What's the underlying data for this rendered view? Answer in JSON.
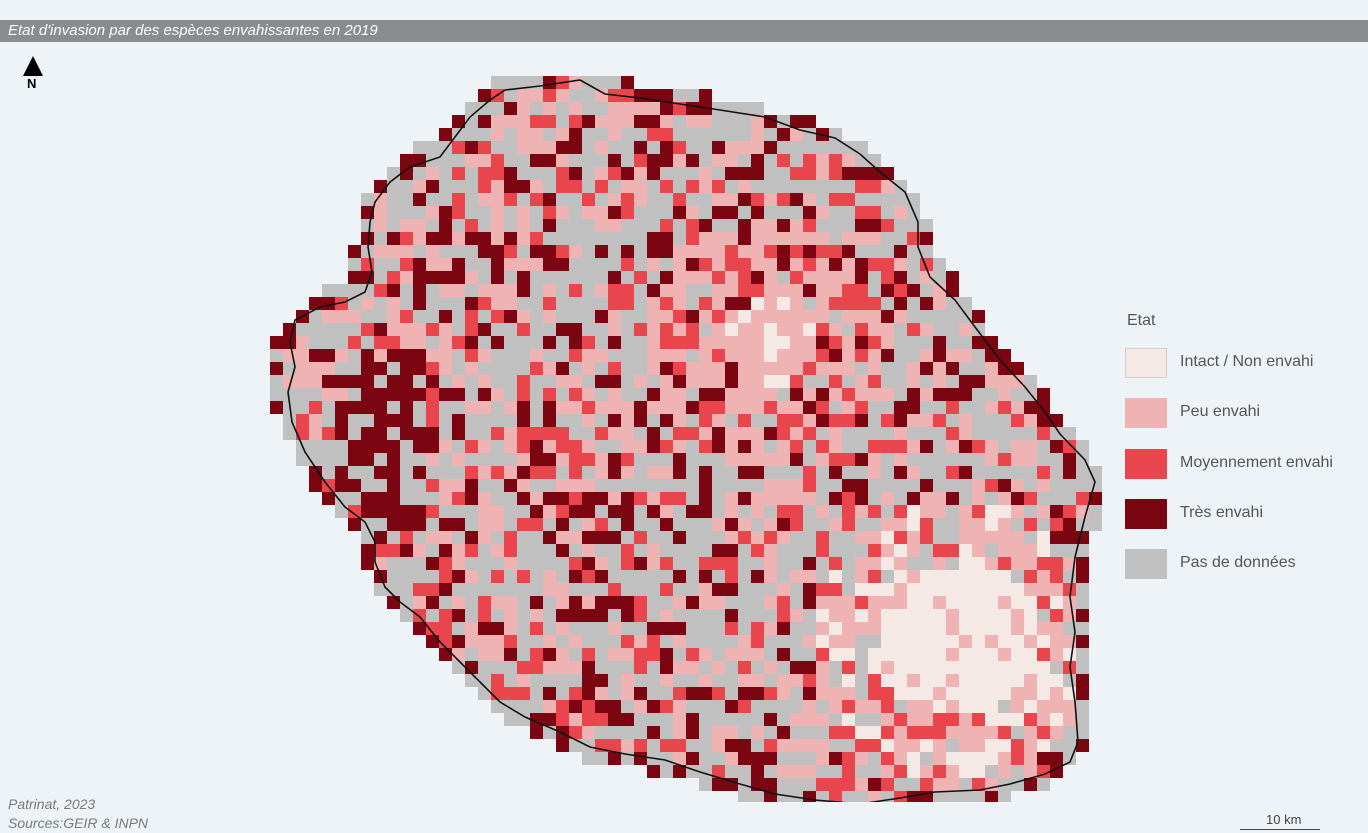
{
  "title": "Etat d'invasion par des espèces envahissantes en 2019",
  "north_label": "N",
  "legend": {
    "title": "Etat",
    "items": [
      {
        "label": "Intact / Non envahi",
        "color": "#f4e9e4"
      },
      {
        "label": "Peu envahi",
        "color": "#f0b3b3"
      },
      {
        "label": "Moyennement envahi",
        "color": "#e8464c"
      },
      {
        "label": "Très envahi",
        "color": "#7b0611"
      },
      {
        "label": "Pas de données",
        "color": "#c0c0c0"
      }
    ]
  },
  "credit": {
    "line1": "Patrinat, 2023",
    "line2": "Sources:GEIR & INPN"
  },
  "scalebar": {
    "label": "10 km"
  },
  "colors": {
    "background": "#edf3f6",
    "title_bar": "#8a8c8e",
    "coastline": "#111111"
  }
}
